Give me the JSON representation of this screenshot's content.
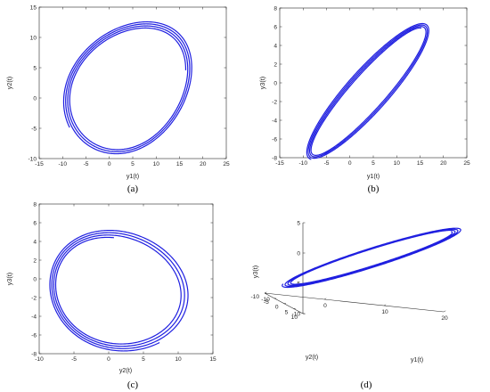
{
  "figure": {
    "colors": {
      "curve": "#1f1fe0",
      "axes": "#262626",
      "background": "#ffffff"
    },
    "panels": [
      {
        "id": "a",
        "label": "(a)"
      },
      {
        "id": "b",
        "label": "(b)"
      },
      {
        "id": "c",
        "label": "(c)"
      },
      {
        "id": "d",
        "label": "(d)"
      }
    ]
  },
  "chart_data": [
    {
      "type": "line",
      "panel": "(a)",
      "title": "",
      "xlabel": "y1(t)",
      "ylabel": "y2(t)",
      "xlim": [
        -15,
        25
      ],
      "ylim": [
        -10,
        15
      ],
      "xticks": [
        "-15",
        "-10",
        "-5",
        "0",
        "5",
        "10",
        "15",
        "20",
        "25"
      ],
      "yticks": [
        "-10",
        "-5",
        "0",
        "5",
        "10",
        "15"
      ],
      "grid": false,
      "trajectory": {
        "x_coord": "y1",
        "y_coord": "y2",
        "start_point": [
          14.5,
          0.5
        ],
        "loops": 4,
        "extent_x": [
          -10,
          18.5
        ],
        "extent_y": [
          -8.5,
          12
        ]
      }
    },
    {
      "type": "line",
      "panel": "(b)",
      "title": "",
      "xlabel": "y1(t)",
      "ylabel": "y3(t)",
      "xlim": [
        -15,
        25
      ],
      "ylim": [
        -8,
        8
      ],
      "xticks": [
        "-15",
        "-10",
        "-5",
        "0",
        "5",
        "10",
        "15",
        "20",
        "25"
      ],
      "yticks": [
        "-8",
        "-6",
        "-4",
        "-2",
        "0",
        "2",
        "4",
        "6",
        "8"
      ],
      "grid": false,
      "trajectory": {
        "x_coord": "y1",
        "y_coord": "y3",
        "start_point": [
          15,
          4
        ],
        "loops": 4,
        "extent_x": [
          -10.5,
          18.5
        ],
        "extent_y": [
          -8,
          6.3
        ]
      }
    },
    {
      "type": "line",
      "panel": "(c)",
      "title": "",
      "xlabel": "y2(t)",
      "ylabel": "y3(t)",
      "xlim": [
        -10,
        15
      ],
      "ylim": [
        -8,
        8
      ],
      "xticks": [
        "-10",
        "-5",
        "0",
        "5",
        "10",
        "15"
      ],
      "yticks": [
        "-8",
        "-6",
        "-4",
        "-2",
        "0",
        "2",
        "4",
        "6",
        "8"
      ],
      "grid": false,
      "trajectory": {
        "x_coord": "y2",
        "y_coord": "y3",
        "start_point": [
          0,
          4
        ],
        "loops": 4,
        "extent_x": [
          -8.5,
          12
        ],
        "extent_y": [
          -7.6,
          6.3
        ]
      }
    },
    {
      "type": "line",
      "panel": "(d)",
      "title": "",
      "xlabel": "y1(t)",
      "ylabel": "y2(t)",
      "zlabel": "y3(t)",
      "view": "3d",
      "xlim": [
        -10,
        20
      ],
      "ylim": [
        -10,
        10
      ],
      "zlim": [
        -10,
        5
      ],
      "xticks": [
        "-10",
        "0",
        "10",
        "20"
      ],
      "yticks": [
        "-10",
        "-5",
        "0",
        "5",
        "10"
      ],
      "zticks": [
        "-10",
        "-5",
        "0",
        "5"
      ],
      "grid": false,
      "trajectory": {
        "start_point": [
          15,
          0.5,
          4
        ],
        "loops": 4
      }
    }
  ]
}
